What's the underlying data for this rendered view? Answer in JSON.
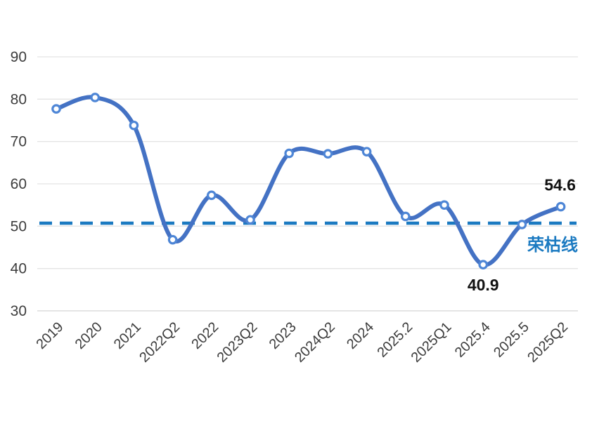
{
  "chart_data": {
    "type": "line",
    "title": "",
    "categories": [
      "2019",
      "2020",
      "2021",
      "2022Q2",
      "2022",
      "2023Q2",
      "2023",
      "2024Q2",
      "2024",
      "2025.2",
      "2025Q1",
      "2025.4",
      "2025.5",
      "2025Q2"
    ],
    "series": [
      {
        "name": "index",
        "values": [
          77.7,
          80.4,
          73.8,
          46.8,
          57.3,
          51.5,
          67.2,
          67.1,
          67.6,
          52.3,
          55.0,
          40.9,
          50.4,
          54.6
        ]
      }
    ],
    "ylim": [
      30,
      90
    ],
    "yticks": [
      90,
      80,
      70,
      60,
      50,
      40,
      30
    ],
    "grid": true,
    "legend": "none",
    "smooth": true,
    "reference_line": {
      "label": "荣枯线",
      "value": 50.7,
      "style": "dashed"
    },
    "point_labels": [
      {
        "category": "2025.4",
        "text": "40.9",
        "placement": "below"
      },
      {
        "category": "2025Q2",
        "text": "54.6",
        "placement": "above"
      }
    ]
  },
  "colors": {
    "series_line": "#4472C4",
    "marker_fill": "#ffffff",
    "marker_stroke": "#4E86D6",
    "reference_line": "#1B7AC1",
    "reference_label": "#1B7AC1",
    "gridline": "#E4E4E4",
    "axis_bottom_line": "#D4D4D4",
    "tick_label": "#3C3C3C",
    "point_label": "#111111",
    "background": "#FFFFFF"
  }
}
